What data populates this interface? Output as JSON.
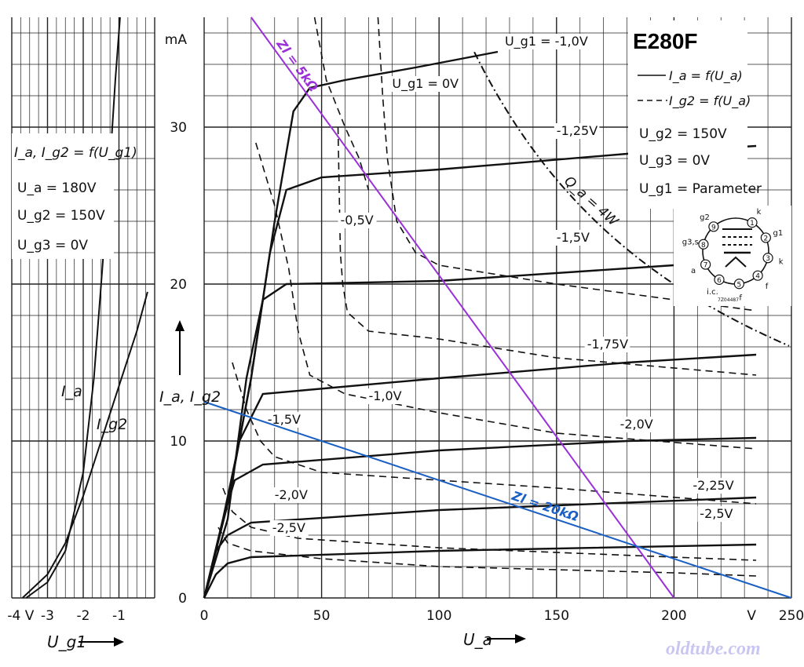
{
  "chart_data": [
    {
      "type": "line",
      "title": "E280F",
      "xlabel": "U_a",
      "x_unit": "V",
      "ylabel": "I_a, I_g2",
      "y_unit": "mA",
      "xlim": [
        0,
        250
      ],
      "ylim": [
        0,
        37
      ],
      "x_ticks": [
        "0",
        "50",
        "100",
        "150",
        "200",
        "V",
        "250"
      ],
      "y_ticks": [
        "0",
        "10",
        "20",
        "30",
        "mA"
      ],
      "grid": true,
      "legend": {
        "solid": "I_a = f(U_a)",
        "dashed": "I_g2 = f(U_a)",
        "conditions": [
          "U_g2 = 150V",
          "U_g3 = 0V",
          "U_g1 = Parameter"
        ]
      },
      "series_ia": [
        {
          "label": "U_g1 = -1,0V",
          "points": [
            [
              0,
              0
            ],
            [
              10,
              6
            ],
            [
              20,
              14
            ],
            [
              30,
              24
            ],
            [
              38,
              31
            ],
            [
              45,
              32.5
            ],
            [
              60,
              33
            ],
            [
              90,
              33.8
            ],
            [
              125,
              34.8
            ]
          ]
        },
        {
          "label": "-1,25V",
          "points": [
            [
              0,
              0
            ],
            [
              10,
              6
            ],
            [
              20,
              14
            ],
            [
              28,
              22
            ],
            [
              35,
              26
            ],
            [
              50,
              26.8
            ],
            [
              100,
              27.3
            ],
            [
              180,
              28.3
            ],
            [
              235,
              28.8
            ]
          ]
        },
        {
          "label": "-1,5V",
          "points": [
            [
              0,
              0
            ],
            [
              10,
              5
            ],
            [
              18,
              14
            ],
            [
              25,
              19
            ],
            [
              35,
              20
            ],
            [
              100,
              20.2
            ],
            [
              200,
              21.2
            ]
          ]
        },
        {
          "label": "-1,75V",
          "points": [
            [
              0,
              0
            ],
            [
              8,
              5
            ],
            [
              15,
              10
            ],
            [
              25,
              13
            ],
            [
              100,
              14
            ],
            [
              180,
              15
            ],
            [
              235,
              15.5
            ]
          ]
        },
        {
          "label": "-2,0V",
          "points": [
            [
              0,
              0
            ],
            [
              8,
              5
            ],
            [
              13,
              7.5
            ],
            [
              25,
              8.5
            ],
            [
              100,
              9.4
            ],
            [
              180,
              10
            ],
            [
              235,
              10.2
            ]
          ]
        },
        {
          "label": "-2,25V",
          "points": [
            [
              0,
              0
            ],
            [
              5,
              3
            ],
            [
              10,
              4
            ],
            [
              20,
              4.8
            ],
            [
              100,
              5.6
            ],
            [
              235,
              6.4
            ]
          ]
        },
        {
          "label": "-2,5V",
          "points": [
            [
              0,
              0
            ],
            [
              5,
              1.5
            ],
            [
              10,
              2.2
            ],
            [
              20,
              2.6
            ],
            [
              100,
              3
            ],
            [
              235,
              3.4
            ]
          ]
        }
      ],
      "series_ig2": [
        {
          "label": "U_g1 = 0V",
          "points": [
            [
              47,
              37
            ],
            [
              52,
              33
            ],
            [
              60,
              30
            ],
            [
              66,
              28
            ],
            [
              70,
              26
            ]
          ]
        },
        {
          "label": "-0,5V",
          "points": [
            [
              74,
              37
            ],
            [
              76,
              32
            ],
            [
              78,
              28
            ],
            [
              82,
              24
            ],
            [
              90,
              22
            ],
            [
              100,
              21.2
            ],
            [
              150,
              20
            ],
            [
              200,
              19
            ],
            [
              235,
              18.3
            ]
          ]
        },
        {
          "label": "-1,0V",
          "points": [
            [
              57,
              30
            ],
            [
              58,
              22
            ],
            [
              59,
              20
            ],
            [
              61,
              18.2
            ],
            [
              70,
              17
            ],
            [
              100,
              16.5
            ],
            [
              150,
              15.3
            ],
            [
              235,
              14.2
            ]
          ]
        },
        {
          "label": "-1,25V",
          "points": [
            [
              22,
              29
            ],
            [
              30,
              25
            ],
            [
              36,
              21
            ],
            [
              40,
              17
            ],
            [
              45,
              14.2
            ],
            [
              60,
              13
            ],
            [
              100,
              11.8
            ],
            [
              150,
              10.5
            ],
            [
              235,
              9.5
            ]
          ]
        },
        {
          "label": "-1,5V",
          "points": [
            [
              12,
              15
            ],
            [
              18,
              12
            ],
            [
              24,
              10
            ],
            [
              30,
              9
            ],
            [
              50,
              8
            ],
            [
              100,
              7.5
            ],
            [
              150,
              7
            ],
            [
              235,
              6
            ]
          ]
        },
        {
          "label": "-2,0V",
          "points": [
            [
              8,
              7
            ],
            [
              12,
              5.5
            ],
            [
              20,
              4.5
            ],
            [
              40,
              3.8
            ],
            [
              100,
              3.2
            ],
            [
              200,
              2.6
            ],
            [
              235,
              2.4
            ]
          ]
        },
        {
          "label": "-2,5V",
          "points": [
            [
              6,
              4.5
            ],
            [
              10,
              3.5
            ],
            [
              20,
              3
            ],
            [
              50,
              2.5
            ],
            [
              100,
              2
            ],
            [
              200,
              1.6
            ],
            [
              235,
              1.4
            ]
          ]
        }
      ],
      "curve_labels": [
        {
          "text": "U_g1 = -1,0V",
          "x": 128,
          "y": 35.2
        },
        {
          "text": "U_g1 = 0V",
          "x": 80,
          "y": 32.5
        },
        {
          "text": "-1,25V",
          "x": 150,
          "y": 29.5
        },
        {
          "text": "-0,5V",
          "x": 58,
          "y": 23.8
        },
        {
          "text": "-1,5V",
          "x": 150,
          "y": 22.7
        },
        {
          "text": "-1,75V",
          "x": 163,
          "y": 15.9
        },
        {
          "text": "-1,0V",
          "x": 70,
          "y": 12.6
        },
        {
          "text": "-1,5V",
          "x": 27,
          "y": 11.1
        },
        {
          "text": "-2,0V",
          "x": 177,
          "y": 10.8
        },
        {
          "text": "-2,25V",
          "x": 208,
          "y": 6.9
        },
        {
          "text": "-2,0V",
          "x": 30,
          "y": 6.3
        },
        {
          "text": "-2,5V",
          "x": 211,
          "y": 5.1
        },
        {
          "text": "-2,5V",
          "x": 29,
          "y": 4.2
        }
      ],
      "power_limit": {
        "label": "Q_a = 4W",
        "watts": 4,
        "x_range": [
          115,
          250
        ]
      },
      "load_lines": [
        {
          "label": "Zl = 5kΩ",
          "color": "#9b30d9",
          "points": [
            [
              20,
              37
            ],
            [
              200,
              0
            ]
          ]
        },
        {
          "label": "Zl = 20kΩ",
          "color": "#1a5fc4",
          "points": [
            [
              0,
              12.5
            ],
            [
              250,
              0
            ]
          ]
        }
      ],
      "pinout": {
        "pins": [
          "1 k",
          "2 g1",
          "3 k",
          "4 f",
          "5 f",
          "6 i.c.",
          "7 a",
          "8 g3,s",
          "9 g2"
        ],
        "code": "7Z04487"
      }
    },
    {
      "type": "line",
      "title": "I_a, I_g2 = f(U_g1)",
      "conditions": [
        "U_a = 180V",
        "U_g2 = 150V",
        "U_g3 = 0V"
      ],
      "xlabel": "U_g1",
      "x_unit": "V",
      "xlim": [
        -4,
        0
      ],
      "ylim": [
        0,
        37
      ],
      "x_ticks": [
        "-4 V",
        "-3",
        "-2",
        "-1"
      ],
      "series": [
        {
          "name": "I_a",
          "points": [
            [
              -3.6,
              0
            ],
            [
              -3,
              1
            ],
            [
              -2.5,
              3
            ],
            [
              -2,
              8
            ],
            [
              -1.7,
              14
            ],
            [
              -1.5,
              20
            ],
            [
              -1.3,
              26
            ],
            [
              -1.1,
              33
            ],
            [
              -0.97,
              37
            ]
          ]
        },
        {
          "name": "I_g2",
          "points": [
            [
              -3.7,
              0
            ],
            [
              -3,
              1.5
            ],
            [
              -2.5,
              3.5
            ],
            [
              -2,
              6.5
            ],
            [
              -1.5,
              10
            ],
            [
              -1,
              13.5
            ],
            [
              -0.5,
              17
            ],
            [
              -0.2,
              19.5
            ]
          ]
        }
      ]
    }
  ],
  "labels": {
    "axis_y_main": "I_a, I_g2",
    "axis_x_main": "U_a",
    "axis_x_left": "U_g1",
    "left_title": "I_a, I_g2 = f(U_g1)",
    "left_cond_ua": "U_a = 180V",
    "left_cond_ug2": "U_g2 = 150V",
    "left_cond_ug3": "U_g3 = 0V",
    "left_curve_ia": "I_a",
    "left_curve_ig2": "I_g2",
    "box_title": "E280F",
    "legend_solid": "I_a = f(U_a)",
    "legend_dashed": "I_g2 = f(U_a)",
    "legend_ug2": "U_g2 = 150V",
    "legend_ug3": "U_g3 = 0V",
    "legend_ug1": "U_g1 = Parameter",
    "watermark": "oldtube.com"
  },
  "colors": {
    "grid": "#222222",
    "curve": "#111111",
    "load_5k": "#9b30d9",
    "load_20k": "#1a5fc4",
    "watermark": "#c9c7f2"
  }
}
